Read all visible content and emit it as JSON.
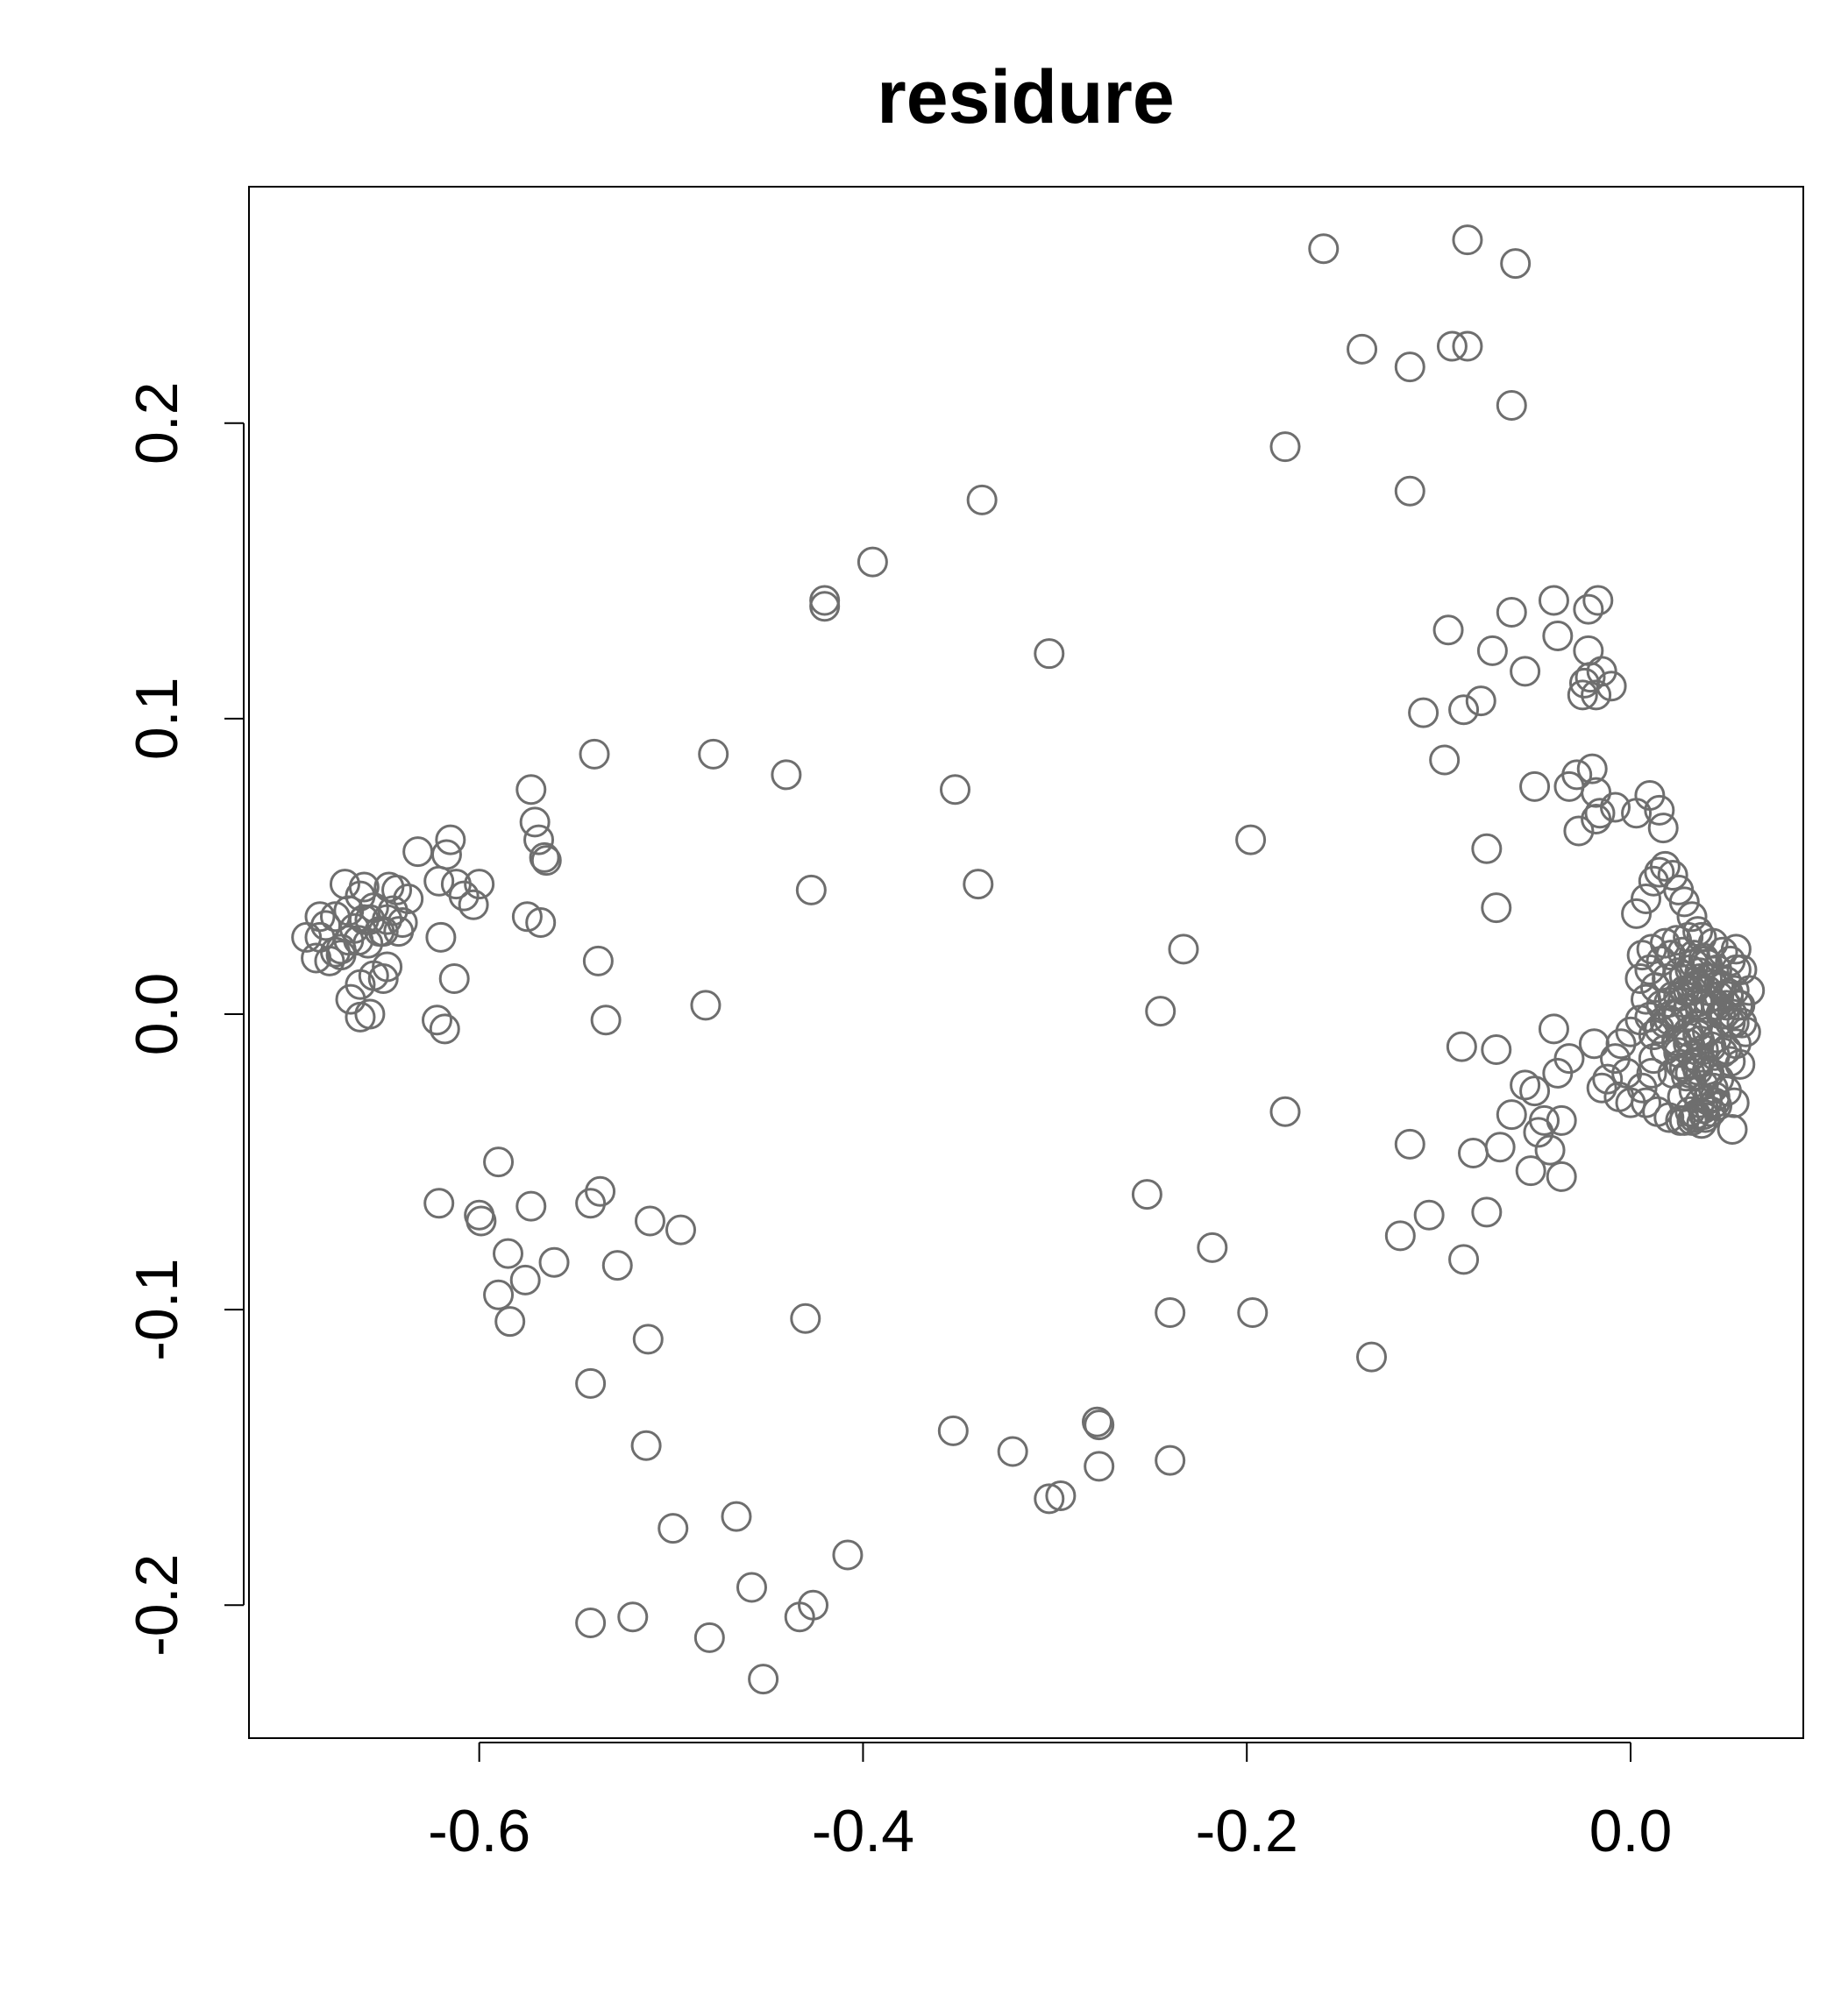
{
  "chart_data": {
    "type": "scatter",
    "title": "residure",
    "xlabel": "",
    "ylabel": "",
    "xlim": [
      -0.72,
      0.09
    ],
    "ylim": [
      -0.245,
      0.28
    ],
    "x_ticks": [
      -0.6,
      -0.4,
      -0.2,
      0.0
    ],
    "x_tick_labels": [
      "-0.6",
      "-0.4",
      "-0.2",
      "0.0"
    ],
    "y_ticks": [
      -0.2,
      -0.1,
      0.0,
      0.1,
      0.2
    ],
    "y_tick_labels": [
      "-0.2",
      "-0.1",
      "0.0",
      "0.1",
      "0.2"
    ],
    "grid": false,
    "marker": "open-circle",
    "point_color": "#6e6e6e",
    "series": [
      {
        "x": [
          -0.16,
          -0.085,
          -0.06,
          -0.14,
          -0.115,
          -0.093,
          -0.085,
          -0.062,
          -0.18,
          -0.115,
          -0.338,
          -0.395,
          -0.42,
          -0.42,
          -0.303,
          -0.04,
          -0.017,
          -0.095,
          -0.038,
          -0.062,
          -0.072,
          -0.055,
          -0.022,
          -0.015,
          -0.108,
          -0.078,
          -0.087,
          -0.01,
          -0.021,
          -0.018,
          -0.024,
          -0.025,
          -0.022,
          -0.097,
          -0.05,
          -0.032,
          -0.028,
          -0.02,
          -0.016,
          -0.008,
          0.003,
          0.01,
          0.015,
          0.017,
          -0.198,
          -0.075,
          -0.07,
          -0.027,
          -0.018,
          -0.018,
          -0.04,
          -0.088,
          -0.07,
          -0.032,
          -0.019,
          -0.038,
          -0.055,
          -0.05,
          -0.062,
          -0.045,
          -0.048,
          -0.036,
          -0.042,
          -0.052,
          -0.036,
          -0.068,
          -0.082,
          -0.115,
          -0.12,
          -0.105,
          -0.075,
          -0.087,
          -0.135,
          -0.18,
          -0.252,
          -0.218,
          -0.24,
          -0.197,
          -0.278,
          -0.297,
          -0.245,
          -0.352,
          -0.34,
          -0.44,
          -0.427,
          -0.478,
          -0.482,
          -0.54,
          -0.534,
          -0.538,
          -0.573,
          -0.571,
          -0.569,
          -0.566,
          -0.565,
          -0.575,
          -0.568,
          -0.353,
          -0.322,
          -0.303,
          -0.277,
          -0.277,
          -0.24,
          -0.233,
          -0.43,
          -0.408,
          -0.433,
          -0.426,
          -0.466,
          -0.458,
          -0.48,
          -0.452,
          -0.499,
          -0.52,
          -0.542,
          -0.512,
          -0.513,
          -0.542,
          -0.528,
          -0.542,
          -0.537,
          -0.511,
          -0.495,
          -0.621,
          -0.6,
          -0.599,
          -0.59,
          -0.573,
          -0.585,
          -0.561,
          -0.59,
          -0.576,
          -0.584,
          -0.632,
          -0.615,
          -0.617,
          -0.6,
          -0.603,
          -0.608,
          -0.621,
          -0.612,
          -0.62,
          -0.613,
          -0.622,
          -0.618,
          -0.637,
          -0.643,
          -0.647,
          -0.65,
          -0.66,
          -0.655,
          -0.648,
          -0.665,
          -0.662,
          -0.67,
          -0.675,
          -0.68,
          -0.683,
          -0.69,
          -0.685,
          -0.672,
          -0.668,
          -0.66,
          -0.658,
          -0.652,
          -0.645,
          -0.64,
          -0.65,
          -0.667,
          -0.662,
          -0.678,
          -0.655,
          -0.648,
          -0.642,
          -0.668,
          -0.672,
          -0.663,
          -0.657,
          -0.683,
          -0.675,
          -0.662,
          -0.657,
          0.003,
          0.008,
          0.012,
          0.015,
          0.018,
          0.022,
          0.025,
          0.028,
          0.032,
          0.035,
          0.006,
          0.011,
          0.018,
          0.024,
          0.03,
          0.037,
          0.043,
          0.048,
          0.052,
          0.055,
          0.005,
          0.01,
          0.016,
          0.021,
          0.027,
          0.033,
          0.039,
          0.045,
          0.05,
          0.054,
          0.008,
          0.013,
          0.019,
          0.025,
          0.031,
          0.036,
          0.042,
          0.047,
          0.051,
          0.056,
          0.01,
          0.016,
          0.022,
          0.028,
          0.034,
          0.04,
          0.046,
          0.05,
          0.053,
          0.058,
          0.012,
          0.018,
          0.024,
          0.03,
          0.036,
          0.041,
          0.047,
          0.052,
          0.018,
          0.024,
          0.03,
          0.035,
          0.04,
          0.045,
          0.05,
          0.026,
          0.032,
          0.038,
          0.044,
          0.029,
          0.035,
          0.041,
          0.033,
          0.038,
          0.043,
          0.036,
          0.04,
          0.034,
          0.031,
          0.039,
          0.045,
          0.027,
          0.037,
          0.042,
          0.028,
          0.033,
          0.038,
          0.044,
          0.02,
          0.025,
          0.03,
          0.035,
          0.04,
          0.046,
          0.051,
          0.015,
          0.02,
          0.025,
          0.03,
          0.035,
          0.04,
          0.045,
          0.049,
          0.054,
          0.012,
          0.018,
          0.024,
          0.03,
          0.036,
          0.042,
          0.048,
          0.052,
          0.022,
          0.028,
          0.034,
          0.04,
          0.046,
          -0.005,
          0.0,
          0.005,
          -0.008,
          -0.002,
          -0.012,
          -0.015,
          -0.006,
          0.0,
          0.006,
          0.011,
          0.008,
          0.014,
          0.02,
          0.026,
          0.032,
          0.038,
          0.044,
          0.05,
          0.057,
          0.06,
          0.062,
          0.058,
          0.055,
          0.057,
          0.055,
          0.053,
          0.054,
          0.028,
          0.033,
          0.038,
          0.04,
          0.036,
          0.032,
          0.027,
          0.022,
          0.035,
          0.03,
          0.025,
          0.031,
          0.036
        ],
        "y": [
          0.259,
          0.262,
          0.254,
          0.225,
          0.219,
          0.226,
          0.226,
          0.206,
          0.192,
          0.177,
          0.174,
          0.153,
          0.14,
          0.138,
          0.122,
          0.14,
          0.14,
          0.13,
          0.128,
          0.136,
          0.123,
          0.116,
          0.123,
          0.116,
          0.102,
          0.106,
          0.103,
          0.111,
          0.114,
          0.108,
          0.112,
          0.108,
          0.137,
          0.086,
          0.077,
          0.077,
          0.081,
          0.083,
          0.068,
          0.07,
          0.068,
          0.074,
          0.069,
          0.063,
          0.059,
          0.056,
          0.036,
          0.062,
          0.075,
          0.066,
          -0.005,
          -0.011,
          -0.012,
          -0.015,
          -0.01,
          -0.02,
          -0.024,
          -0.026,
          -0.034,
          -0.036,
          -0.04,
          -0.036,
          -0.046,
          -0.053,
          -0.055,
          -0.045,
          -0.047,
          -0.044,
          -0.075,
          -0.068,
          -0.067,
          -0.083,
          -0.116,
          -0.033,
          -0.061,
          -0.079,
          -0.101,
          -0.101,
          -0.138,
          -0.163,
          0.001,
          0.076,
          0.044,
          0.081,
          0.042,
          0.088,
          0.003,
          0.088,
          -0.002,
          0.018,
          0.076,
          0.065,
          0.059,
          0.053,
          0.052,
          0.033,
          0.031,
          -0.141,
          -0.148,
          -0.164,
          -0.153,
          -0.139,
          -0.151,
          0.022,
          -0.103,
          -0.183,
          -0.204,
          -0.2,
          -0.17,
          -0.194,
          -0.211,
          -0.225,
          -0.174,
          -0.204,
          -0.206,
          -0.11,
          -0.146,
          -0.125,
          -0.085,
          -0.064,
          -0.06,
          -0.07,
          -0.073,
          -0.064,
          -0.068,
          -0.07,
          -0.05,
          -0.065,
          -0.081,
          -0.084,
          -0.095,
          -0.09,
          -0.104,
          0.055,
          0.059,
          0.054,
          0.044,
          0.037,
          0.04,
          0.045,
          0.044,
          0.026,
          0.012,
          -0.002,
          -0.005,
          0.039,
          0.042,
          0.043,
          0.028,
          0.043,
          0.036,
          0.032,
          0.029,
          0.04,
          0.044,
          0.033,
          0.03,
          0.033,
          0.026,
          0.019,
          0.02,
          0.025,
          0.032,
          0.024,
          0.028,
          0.035,
          0.031,
          0.012,
          0.005,
          0.01,
          0.018,
          0.013,
          0.016,
          0.028,
          0.035,
          0.022,
          0.025,
          0.032,
          0.026,
          0.021,
          -0.001,
          0.0,
          0.034,
          0.039,
          0.045,
          0.048,
          0.05,
          0.047,
          0.042,
          0.038,
          0.033,
          0.028,
          0.02,
          0.022,
          0.024,
          0.025,
          0.026,
          0.026,
          0.024,
          0.021,
          0.018,
          0.015,
          0.012,
          0.015,
          0.018,
          0.02,
          0.021,
          0.02,
          0.018,
          0.015,
          0.011,
          0.008,
          0.005,
          0.009,
          0.012,
          0.014,
          0.015,
          0.014,
          0.012,
          0.009,
          0.006,
          0.003,
          -0.001,
          0.003,
          0.006,
          0.008,
          0.009,
          0.008,
          0.006,
          0.003,
          0.0,
          -0.003,
          -0.007,
          -0.003,
          0.0,
          0.002,
          0.003,
          0.002,
          0.0,
          -0.003,
          -0.012,
          -0.009,
          -0.006,
          -0.004,
          -0.006,
          -0.008,
          -0.012,
          -0.017,
          -0.014,
          -0.012,
          -0.014,
          -0.021,
          -0.019,
          -0.02,
          -0.026,
          -0.024,
          -0.025,
          -0.03,
          -0.029,
          -0.034,
          -0.033,
          -0.035,
          -0.031,
          -0.028,
          -0.037,
          -0.033,
          -0.036,
          -0.035,
          -0.032,
          -0.028,
          0.004,
          0.006,
          0.008,
          0.01,
          0.012,
          0.01,
          0.007,
          -0.005,
          -0.002,
          0.0,
          0.002,
          0.004,
          0.005,
          0.003,
          0.0,
          -0.003,
          -0.015,
          -0.012,
          -0.01,
          -0.008,
          -0.009,
          -0.011,
          -0.013,
          -0.016,
          -0.02,
          -0.018,
          -0.017,
          -0.019,
          -0.022,
          -0.01,
          -0.006,
          -0.002,
          -0.015,
          -0.02,
          -0.022,
          -0.025,
          -0.028,
          -0.03,
          -0.025,
          -0.02,
          -0.03,
          -0.033,
          -0.035,
          -0.036,
          -0.036,
          -0.034,
          -0.03,
          -0.026,
          -0.017,
          -0.006,
          0.008,
          0.015,
          0.022,
          0.003,
          -0.01,
          -0.039,
          -0.03,
          0.013,
          0.017,
          0.019,
          0.017,
          0.012,
          0.008,
          0.004,
          0.0,
          -0.007,
          -0.01,
          -0.013,
          -0.02,
          -0.016
        ]
      }
    ]
  }
}
